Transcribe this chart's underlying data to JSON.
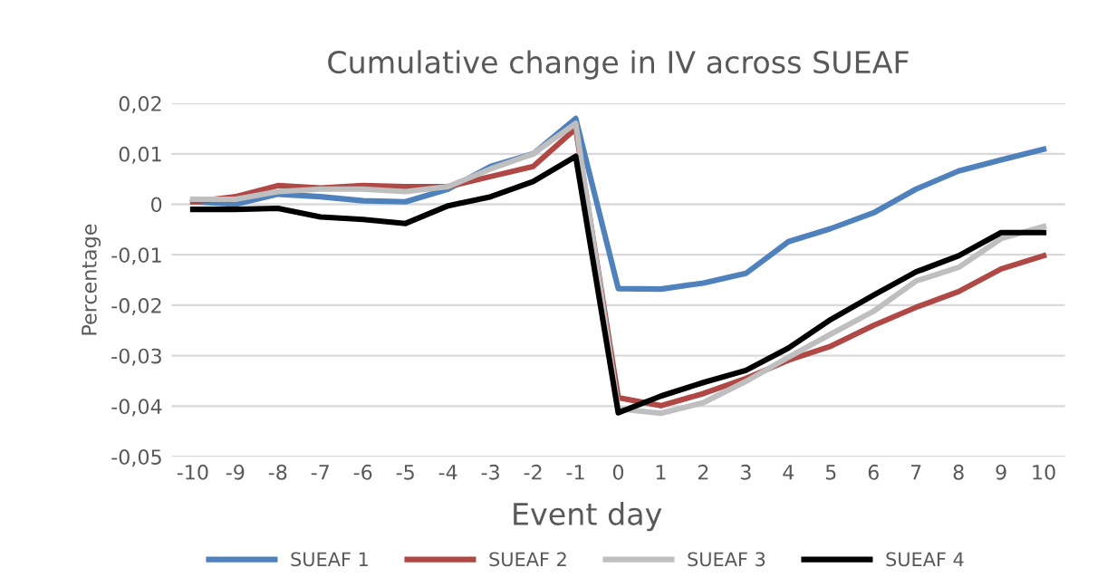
{
  "chart_data": {
    "type": "line",
    "title": "Cumulative change in IV across SUEAF",
    "xlabel": "Event day",
    "ylabel": "Percentage",
    "categories": [
      "-10",
      "-9",
      "-8",
      "-7",
      "-6",
      "-5",
      "-4",
      "-3",
      "-2",
      "-1",
      "0",
      "1",
      "2",
      "3",
      "4",
      "5",
      "6",
      "7",
      "8",
      "9",
      "10"
    ],
    "series": [
      {
        "name": "SUEAF 1",
        "color": "#4f81bd",
        "values": [
          0.0005,
          0.0,
          0.002,
          0.0015,
          0.0007,
          0.0005,
          0.003,
          0.0075,
          0.01,
          0.017,
          -0.0167,
          -0.0168,
          -0.0156,
          -0.0137,
          -0.0074,
          -0.0048,
          -0.0017,
          0.003,
          0.0066,
          0.0088,
          0.0109
        ]
      },
      {
        "name": "SUEAF 2",
        "color": "#b04845",
        "values": [
          0.0005,
          0.0015,
          0.0037,
          0.0032,
          0.0037,
          0.0035,
          0.0035,
          0.0055,
          0.0075,
          0.015,
          -0.0383,
          -0.0399,
          -0.0375,
          -0.0345,
          -0.0309,
          -0.0281,
          -0.024,
          -0.0204,
          -0.0173,
          -0.0128,
          -0.0102
        ]
      },
      {
        "name": "SUEAF 3",
        "color": "#bfbfbf",
        "values": [
          0.001,
          0.001,
          0.0025,
          0.003,
          0.003,
          0.0025,
          0.0035,
          0.007,
          0.01,
          0.016,
          -0.0405,
          -0.0414,
          -0.0393,
          -0.0351,
          -0.0303,
          -0.0257,
          -0.0212,
          -0.0152,
          -0.0125,
          -0.0068,
          -0.0044
        ]
      },
      {
        "name": "SUEAF 4",
        "color": "#000000",
        "values": [
          -0.001,
          -0.001,
          -0.0008,
          -0.0025,
          -0.003,
          -0.0038,
          -0.0003,
          0.0015,
          0.0045,
          0.0095,
          -0.0413,
          -0.038,
          -0.0353,
          -0.0329,
          -0.0285,
          -0.0228,
          -0.018,
          -0.0134,
          -0.0102,
          -0.0056,
          -0.0056
        ]
      }
    ],
    "ylim": [
      -0.05,
      0.02
    ],
    "yticks": [
      {
        "value": -0.05,
        "label": "-0,05"
      },
      {
        "value": -0.04,
        "label": "-0,04"
      },
      {
        "value": -0.03,
        "label": "-0,03"
      },
      {
        "value": -0.02,
        "label": "-0,02"
      },
      {
        "value": -0.01,
        "label": "-0,01"
      },
      {
        "value": 0,
        "label": "0"
      },
      {
        "value": 0.01,
        "label": "0,01"
      },
      {
        "value": 0.02,
        "label": "0,02"
      }
    ],
    "grid": "y",
    "legend": "bottom",
    "marker": "none",
    "line_style": "solid"
  }
}
